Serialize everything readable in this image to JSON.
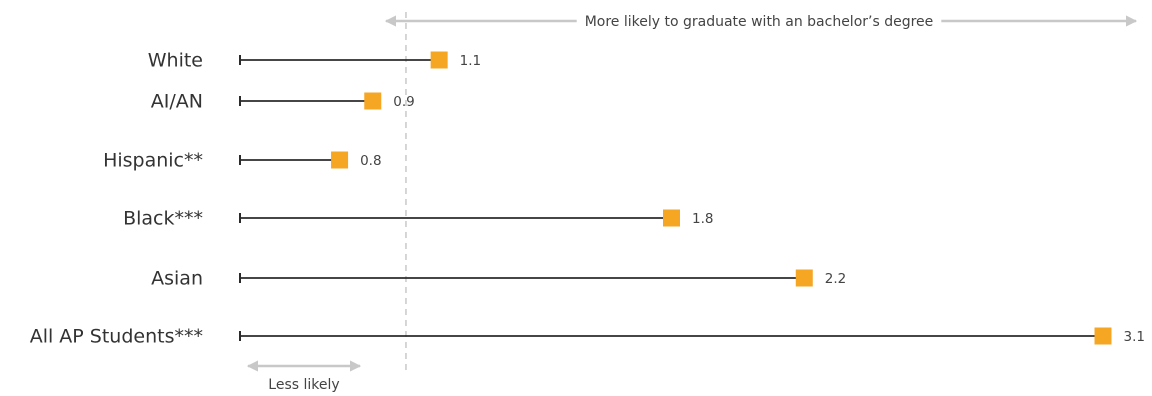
{
  "chart_data": {
    "type": "dot",
    "categories": [
      "White",
      "AI/AN",
      "Hispanic**",
      "Black***",
      "Asian",
      "All AP Students***"
    ],
    "values": [
      1.1,
      0.9,
      0.8,
      1.8,
      2.2,
      3.1
    ],
    "value_labels": [
      "1.1",
      "0.9",
      "0.8",
      "1.8",
      "2.2",
      "3.1"
    ],
    "xlim": [
      0.5,
      3.1
    ],
    "reference_line": 1.0,
    "annotations": {
      "more_likely": "More likely to graduate with an bachelor’s degree",
      "less_likely": "Less likely"
    },
    "grid": false,
    "legend": "none"
  },
  "colors": {
    "marker": "#F5A623",
    "line": "#2b2b2b",
    "reference": "#c8c8c8",
    "arrow": "#c8c8c8",
    "text": "#333333"
  }
}
